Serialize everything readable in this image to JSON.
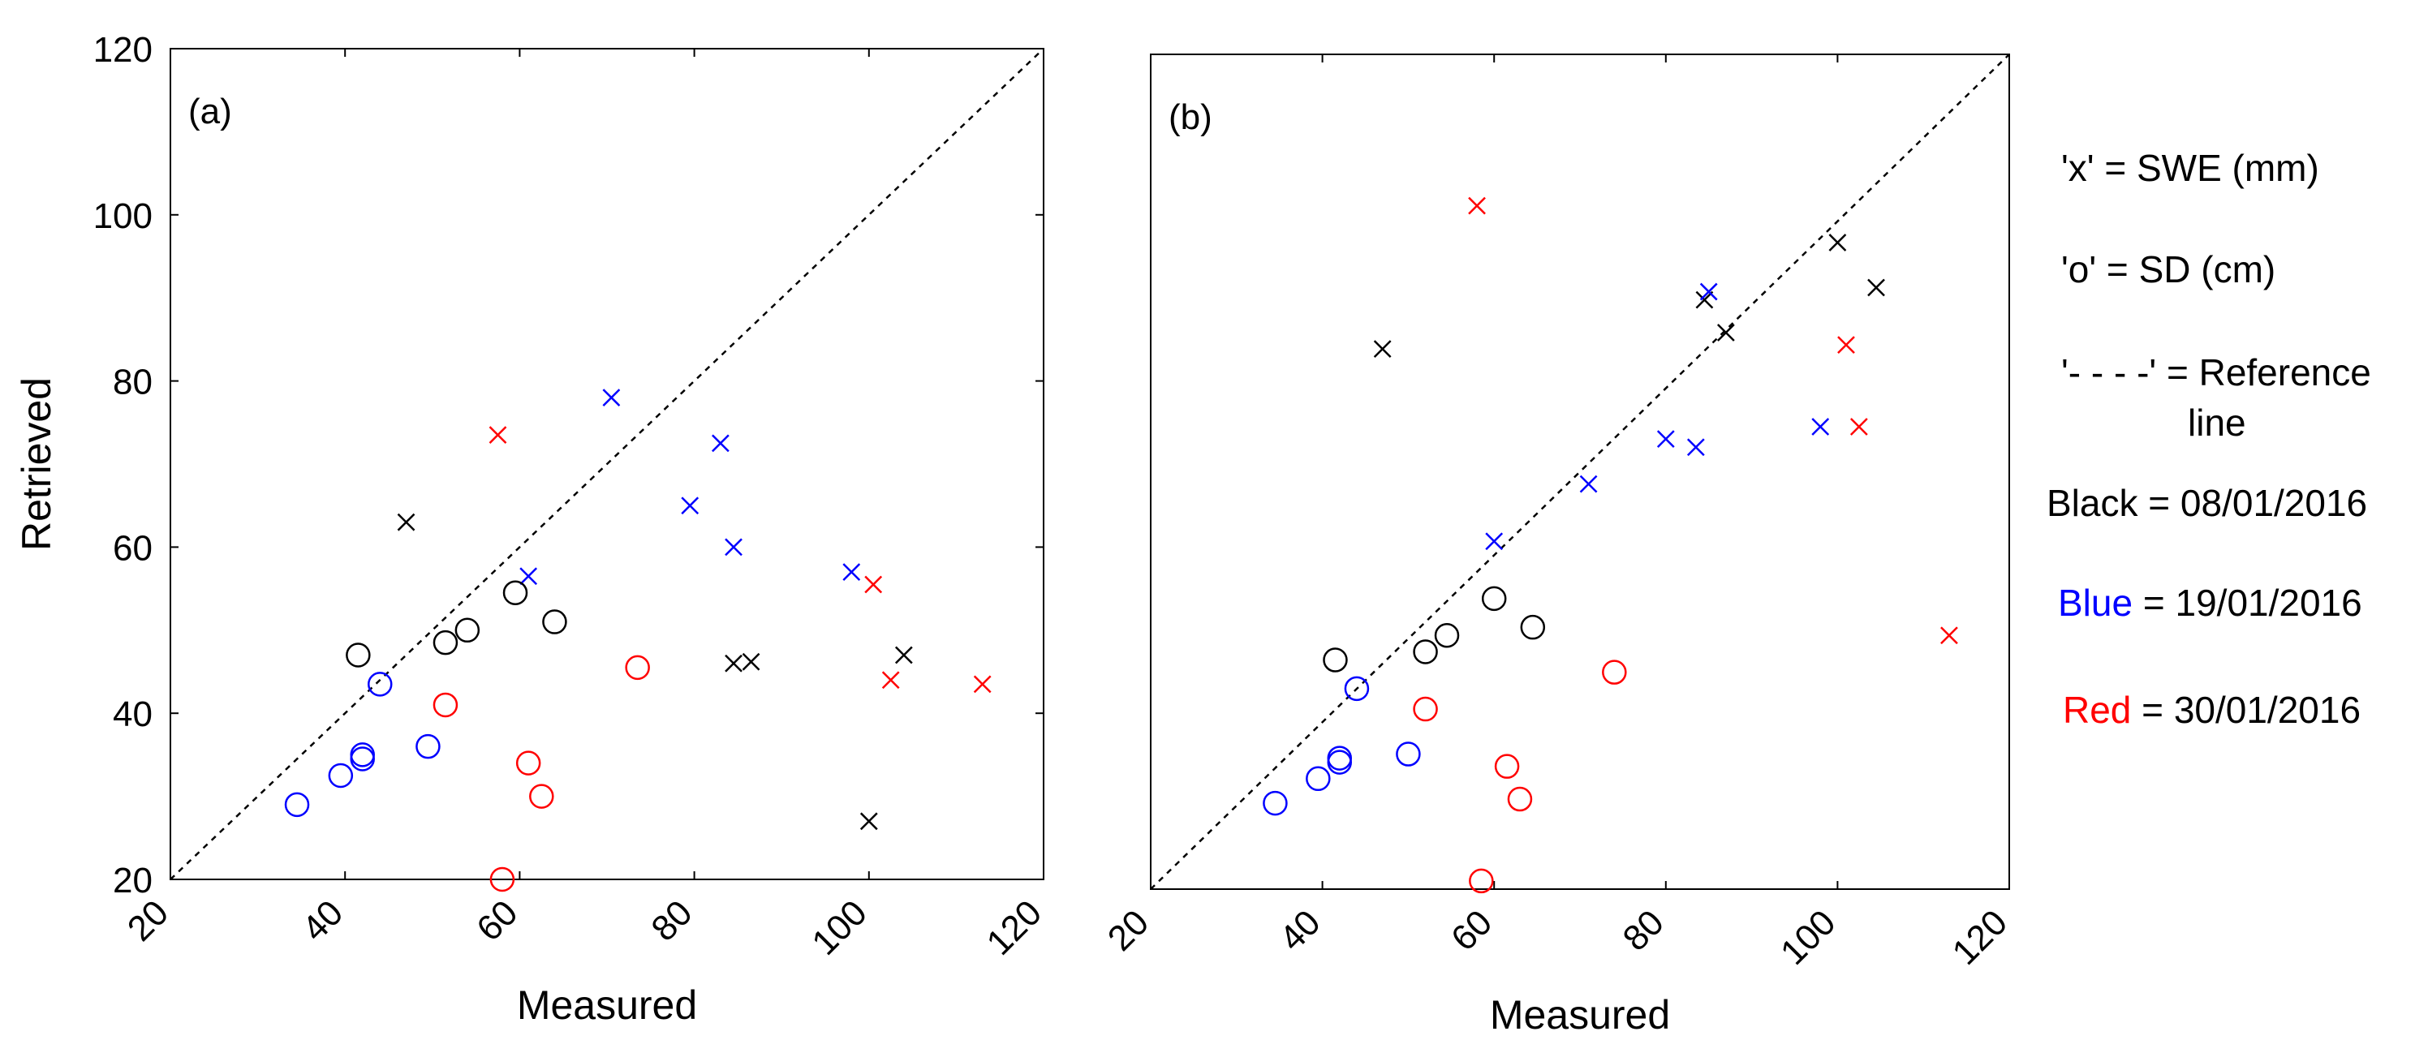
{
  "colors": {
    "black": "#000000",
    "blue": "#0000ff",
    "red": "#ff0000"
  },
  "chart_data": [
    {
      "type": "scatter",
      "panel_label": "(a)",
      "xlabel": "Measured",
      "ylabel": "Retrieved",
      "xlim": [
        20,
        120
      ],
      "ylim": [
        20,
        120
      ],
      "xticks": [
        "20",
        "40",
        "60",
        "80",
        "100",
        "120"
      ],
      "yticks": [
        "20",
        "40",
        "60",
        "80",
        "100",
        "120"
      ],
      "reference_line": [
        [
          20,
          20
        ],
        [
          120,
          120
        ]
      ],
      "series": [
        {
          "name": "Black SWE",
          "marker": "x",
          "color": "#000000",
          "points": [
            [
              47,
              63
            ],
            [
              84.5,
              46
            ],
            [
              86.5,
              46.2
            ],
            [
              100,
              27
            ],
            [
              104,
              47
            ]
          ]
        },
        {
          "name": "Blue SWE",
          "marker": "x",
          "color": "#0000ff",
          "points": [
            [
              61,
              56.5
            ],
            [
              70.5,
              78
            ],
            [
              79.5,
              65
            ],
            [
              83,
              72.5
            ],
            [
              84.5,
              60
            ],
            [
              98,
              57
            ]
          ]
        },
        {
          "name": "Red SWE",
          "marker": "x",
          "color": "#ff0000",
          "points": [
            [
              57.5,
              73.5
            ],
            [
              100.5,
              55.5
            ],
            [
              102.5,
              44
            ],
            [
              113,
              43.5
            ]
          ]
        },
        {
          "name": "Black SD",
          "marker": "o",
          "color": "#000000",
          "points": [
            [
              41.5,
              47
            ],
            [
              51.5,
              48.5
            ],
            [
              54,
              50
            ],
            [
              59.5,
              54.5
            ],
            [
              64,
              51
            ]
          ]
        },
        {
          "name": "Blue SD",
          "marker": "o",
          "color": "#0000ff",
          "points": [
            [
              34.5,
              29
            ],
            [
              39.5,
              32.5
            ],
            [
              42,
              35
            ],
            [
              42,
              34.5
            ],
            [
              44,
              43.5
            ],
            [
              49.5,
              36
            ]
          ]
        },
        {
          "name": "Red SD",
          "marker": "o",
          "color": "#ff0000",
          "points": [
            [
              51.5,
              41
            ],
            [
              58,
              20
            ],
            [
              61,
              34
            ],
            [
              62.5,
              30
            ],
            [
              73.5,
              45.5
            ]
          ]
        }
      ]
    },
    {
      "type": "scatter",
      "panel_label": "(b)",
      "xlabel": "Measured",
      "ylabel": "",
      "xlim": [
        20,
        120
      ],
      "ylim": [
        18,
        120
      ],
      "xticks": [
        "20",
        "40",
        "60",
        "80",
        "100",
        "120"
      ],
      "yticks": [],
      "reference_line": [
        [
          20,
          18
        ],
        [
          120,
          120
        ]
      ],
      "series": [
        {
          "name": "Black SWE",
          "marker": "x",
          "color": "#000000",
          "points": [
            [
              47,
              84
            ],
            [
              84.5,
              90
            ],
            [
              87,
              86
            ],
            [
              100,
              97
            ],
            [
              104.5,
              91.5
            ]
          ]
        },
        {
          "name": "Blue SWE",
          "marker": "x",
          "color": "#0000ff",
          "points": [
            [
              60,
              60.5
            ],
            [
              71,
              67.5
            ],
            [
              80,
              73
            ],
            [
              83.5,
              72
            ],
            [
              85,
              91
            ],
            [
              98,
              74.5
            ]
          ]
        },
        {
          "name": "Red SWE",
          "marker": "x",
          "color": "#ff0000",
          "points": [
            [
              58,
              101.5
            ],
            [
              101,
              84.5
            ],
            [
              102.5,
              74.5
            ],
            [
              113,
              49
            ]
          ]
        },
        {
          "name": "Black SD",
          "marker": "o",
          "color": "#000000",
          "points": [
            [
              41.5,
              46
            ],
            [
              52,
              47
            ],
            [
              54.5,
              49
            ],
            [
              60,
              53.5
            ],
            [
              64.5,
              50
            ]
          ]
        },
        {
          "name": "Blue SD",
          "marker": "o",
          "color": "#0000ff",
          "points": [
            [
              34.5,
              28.5
            ],
            [
              39.5,
              31.5
            ],
            [
              42,
              34
            ],
            [
              42,
              33.5
            ],
            [
              44,
              42.5
            ],
            [
              50,
              34.5
            ]
          ]
        },
        {
          "name": "Red SD",
          "marker": "o",
          "color": "#ff0000",
          "points": [
            [
              52,
              40
            ],
            [
              58.5,
              19
            ],
            [
              61.5,
              33
            ],
            [
              63,
              29
            ],
            [
              74,
              44.5
            ]
          ]
        }
      ]
    }
  ],
  "legend": {
    "swe": "'x' = SWE (mm)",
    "sd": "'o' = SD (cm)",
    "ref_line1": "'- - - -' = Reference",
    "ref_line2": "line",
    "black_name": "Black",
    "black_rest": " = 08/01/2016",
    "blue_name": "Blue",
    "blue_rest": " = 19/01/2016",
    "red_name": "Red",
    "red_rest": " = 30/01/2016"
  }
}
